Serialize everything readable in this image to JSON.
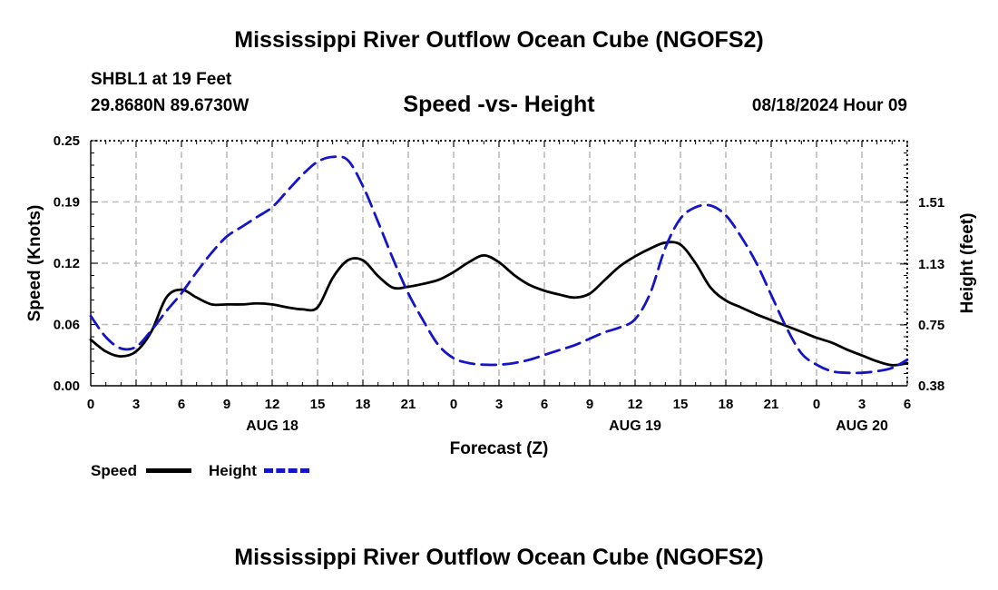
{
  "header": {
    "title": "Mississippi River Outflow Ocean Cube (NGOFS2)",
    "station": "SHBL1 at 19 Feet",
    "coords": "29.8680N  89.6730W",
    "subtitle": "Speed -vs- Height",
    "datetime": "08/18/2024 Hour 09"
  },
  "footer": {
    "title": "Mississippi River Outflow Ocean Cube (NGOFS2)"
  },
  "legend": {
    "speed_label": "Speed",
    "height_label": "Height",
    "speed_color": "#000000",
    "height_color": "#1515c8"
  },
  "chart_data": {
    "type": "line",
    "title": "Speed -vs- Height",
    "xlabel": "Forecast (Z)",
    "ylabel": "Speed (Knots)",
    "y2label": "Height (feet)",
    "xlim": [
      0,
      54
    ],
    "ylim": [
      0,
      0.25
    ],
    "y2lim": [
      0.38,
      1.89
    ],
    "grid": true,
    "legend_position": "bottom-left",
    "x_ticks": [
      0,
      3,
      6,
      9,
      12,
      15,
      18,
      21,
      24,
      27,
      30,
      33,
      36,
      39,
      42,
      45,
      48,
      51,
      54
    ],
    "x_tick_labels": [
      "0",
      "3",
      "6",
      "9",
      "12",
      "15",
      "18",
      "21",
      "0",
      "3",
      "6",
      "9",
      "12",
      "15",
      "18",
      "21",
      "0",
      "3",
      "6"
    ],
    "y_ticks": [
      0,
      0.0625,
      0.125,
      0.1875,
      0.25
    ],
    "y_tick_labels": [
      "0.00",
      "0.06",
      "0.12",
      "0.19",
      "0.25"
    ],
    "y2_ticks": [
      0.38,
      0.755,
      1.13,
      1.51
    ],
    "y2_tick_labels": [
      "0.38",
      "0.75",
      "1.13",
      "1.51"
    ],
    "date_labels": [
      {
        "x": 12,
        "label": "AUG 18"
      },
      {
        "x": 36,
        "label": "AUG 19"
      },
      {
        "x": 51,
        "label": "AUG 20"
      }
    ],
    "series": [
      {
        "name": "Speed",
        "axis": "left",
        "x": [
          0,
          1,
          2,
          3,
          4,
          5,
          6,
          7,
          8,
          9,
          10,
          11,
          12,
          13,
          14,
          15,
          16,
          17,
          18,
          19,
          20,
          21,
          22,
          23,
          24,
          25,
          26,
          27,
          28,
          29,
          30,
          31,
          32,
          33,
          34,
          35,
          36,
          37,
          38,
          39,
          40,
          41,
          42,
          43,
          44,
          45,
          46,
          47,
          48,
          49,
          50,
          51,
          52,
          53,
          54
        ],
        "values": [
          0.047,
          0.035,
          0.03,
          0.035,
          0.055,
          0.09,
          0.098,
          0.09,
          0.083,
          0.083,
          0.083,
          0.084,
          0.083,
          0.08,
          0.078,
          0.08,
          0.11,
          0.128,
          0.128,
          0.112,
          0.1,
          0.101,
          0.104,
          0.108,
          0.116,
          0.126,
          0.133,
          0.126,
          0.113,
          0.103,
          0.097,
          0.093,
          0.09,
          0.094,
          0.108,
          0.122,
          0.132,
          0.14,
          0.146,
          0.144,
          0.125,
          0.1,
          0.087,
          0.08,
          0.073,
          0.067,
          0.061,
          0.055,
          0.049,
          0.044,
          0.037,
          0.031,
          0.025,
          0.021,
          0.023
        ]
      },
      {
        "name": "Height",
        "axis": "right",
        "x": [
          0,
          1,
          2,
          3,
          4,
          5,
          6,
          7,
          8,
          9,
          10,
          11,
          12,
          13,
          14,
          15,
          16,
          17,
          18,
          19,
          20,
          21,
          22,
          23,
          24,
          25,
          26,
          27,
          28,
          29,
          30,
          31,
          32,
          33,
          34,
          35,
          36,
          37,
          38,
          39,
          40,
          41,
          42,
          43,
          44,
          45,
          46,
          47,
          48,
          49,
          50,
          51,
          52,
          53,
          54
        ],
        "values": [
          0.81,
          0.68,
          0.61,
          0.62,
          0.72,
          0.84,
          0.95,
          1.08,
          1.2,
          1.3,
          1.36,
          1.42,
          1.48,
          1.58,
          1.68,
          1.76,
          1.79,
          1.77,
          1.61,
          1.39,
          1.16,
          0.95,
          0.78,
          0.63,
          0.55,
          0.52,
          0.51,
          0.51,
          0.52,
          0.54,
          0.57,
          0.6,
          0.63,
          0.67,
          0.71,
          0.74,
          0.79,
          0.95,
          1.23,
          1.41,
          1.48,
          1.49,
          1.43,
          1.3,
          1.14,
          0.94,
          0.74,
          0.58,
          0.51,
          0.47,
          0.46,
          0.46,
          0.47,
          0.49,
          0.54
        ]
      }
    ]
  }
}
